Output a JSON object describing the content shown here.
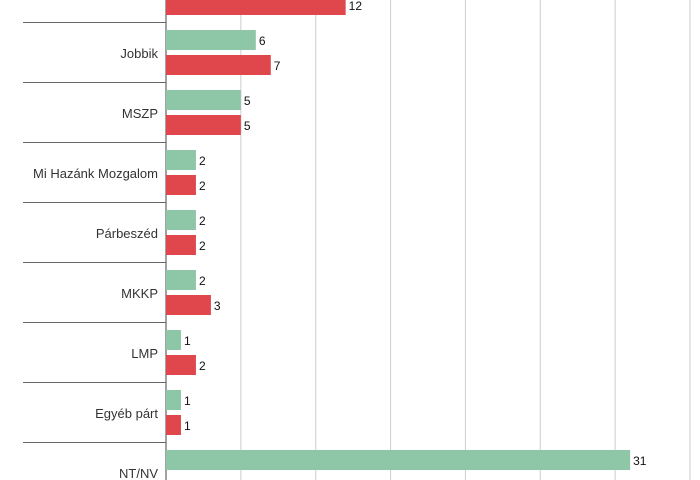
{
  "chart_data": {
    "type": "bar",
    "orientation": "horizontal",
    "categories": [
      "",
      "Jobbik",
      "MSZP",
      "Mi Hazánk Mozgalom",
      "Párbeszéd",
      "MKKP",
      "LMP",
      "Egyéb párt",
      "NT/NV"
    ],
    "series": [
      {
        "color": "#8ec6a8",
        "values": [
          null,
          6,
          5,
          2,
          2,
          2,
          1,
          1,
          31
        ]
      },
      {
        "color": "#e0474c",
        "values": [
          12,
          7,
          5,
          2,
          2,
          3,
          2,
          1,
          null
        ]
      }
    ],
    "xlim": [
      0,
      35
    ],
    "x_gridlines": [
      0,
      5,
      10,
      15,
      20,
      25,
      30,
      35
    ],
    "grid": true,
    "legend": "none",
    "title": "",
    "xlabel": "",
    "ylabel": ""
  }
}
